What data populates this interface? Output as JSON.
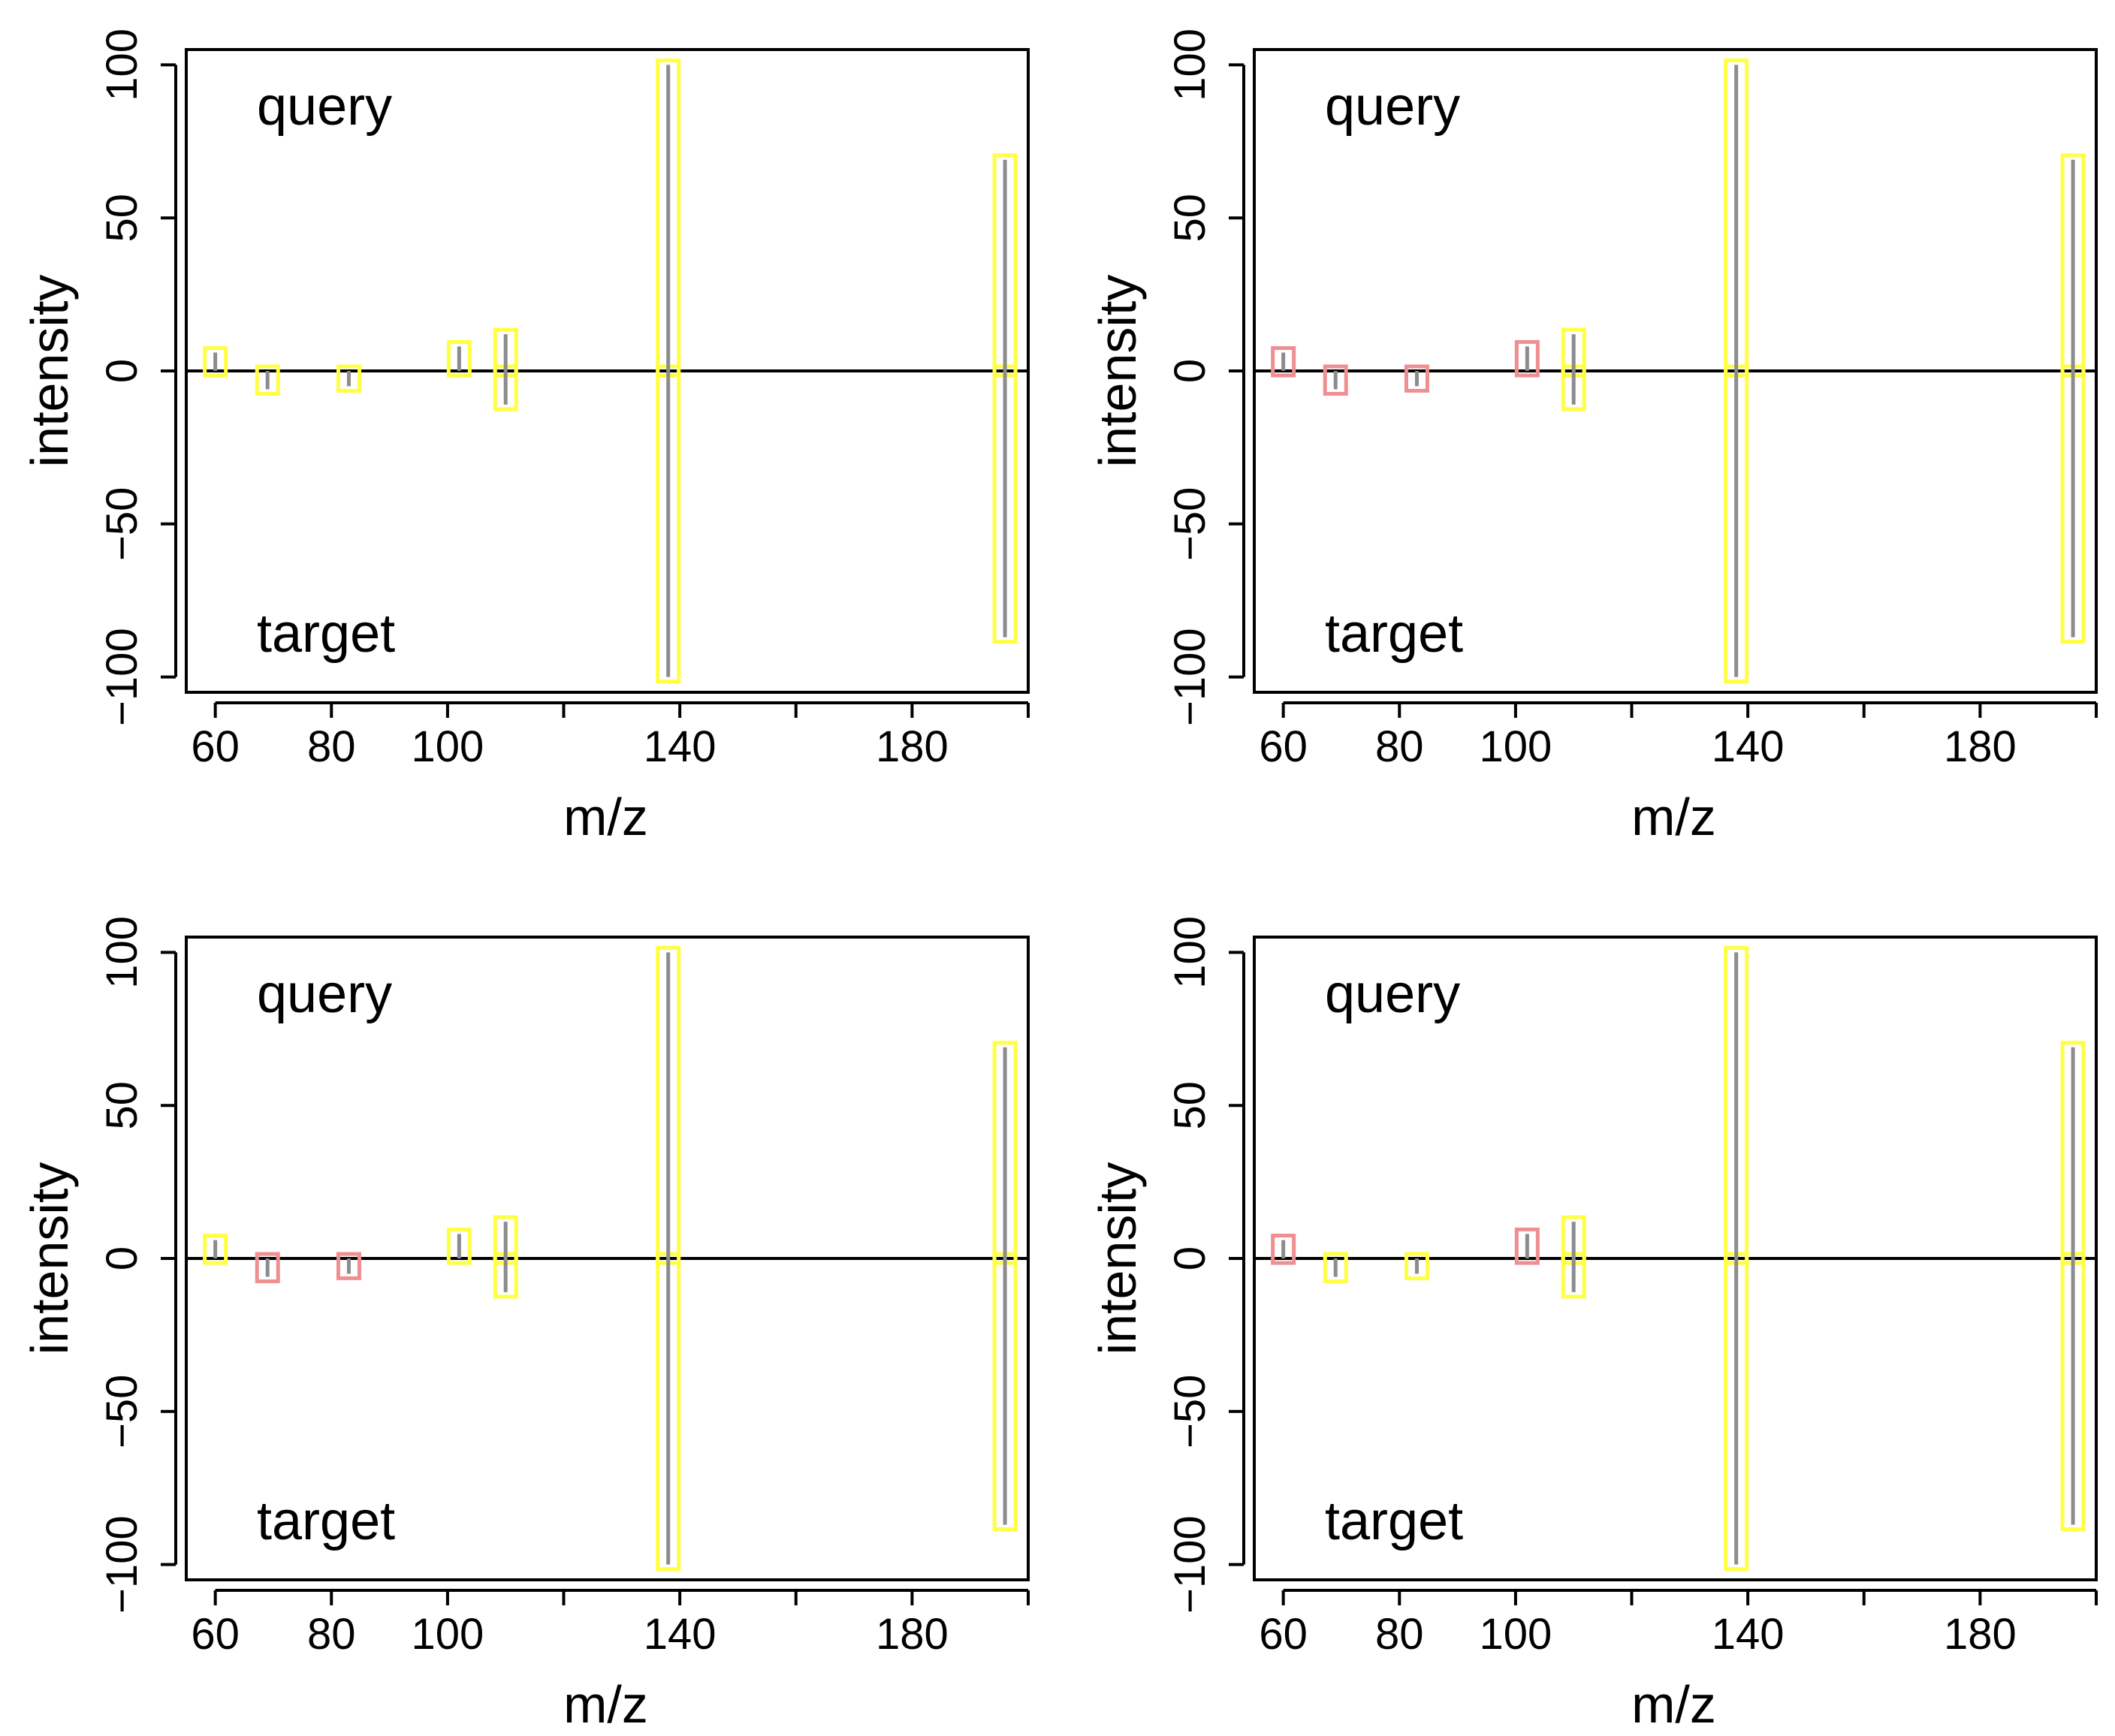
{
  "chart_data": [
    {
      "type": "bar",
      "title": "",
      "xlabel": "m/z",
      "ylabel": "intensity",
      "top_label": "query",
      "bottom_label": "target",
      "xlim": [
        55,
        200
      ],
      "ylim": [
        -105,
        105
      ],
      "xticks": [
        {
          "value": 60,
          "label": "60"
        },
        {
          "value": 80,
          "label": "80"
        },
        {
          "value": 100,
          "label": "100"
        },
        {
          "value": 120,
          "label": ""
        },
        {
          "value": 140,
          "label": "140"
        },
        {
          "value": 160,
          "label": ""
        },
        {
          "value": 180,
          "label": "180"
        },
        {
          "value": 200,
          "label": ""
        }
      ],
      "yticks": [
        {
          "value": -100,
          "label": "−100"
        },
        {
          "value": -50,
          "label": "−50"
        },
        {
          "value": 0,
          "label": "0"
        },
        {
          "value": 50,
          "label": "50"
        },
        {
          "value": 100,
          "label": "100"
        }
      ],
      "peaks": [
        {
          "mz": 60,
          "intensity": 6,
          "match": "yes"
        },
        {
          "mz": 69,
          "intensity": -6,
          "match": "yes"
        },
        {
          "mz": 83,
          "intensity": -5,
          "match": "yes"
        },
        {
          "mz": 102,
          "intensity": 8,
          "match": "yes"
        },
        {
          "mz": 110,
          "intensity": 12,
          "match": "yes"
        },
        {
          "mz": 110,
          "intensity": -11,
          "match": "yes"
        },
        {
          "mz": 138,
          "intensity": 100,
          "match": "yes"
        },
        {
          "mz": 138,
          "intensity": -100,
          "match": "yes"
        },
        {
          "mz": 196,
          "intensity": 69,
          "match": "yes"
        },
        {
          "mz": 196,
          "intensity": -87,
          "match": "yes"
        }
      ]
    },
    {
      "type": "bar",
      "title": "",
      "xlabel": "m/z",
      "ylabel": "intensity",
      "top_label": "query",
      "bottom_label": "target",
      "xlim": [
        55,
        200
      ],
      "ylim": [
        -105,
        105
      ],
      "xticks": [
        {
          "value": 60,
          "label": "60"
        },
        {
          "value": 80,
          "label": "80"
        },
        {
          "value": 100,
          "label": "100"
        },
        {
          "value": 120,
          "label": ""
        },
        {
          "value": 140,
          "label": "140"
        },
        {
          "value": 160,
          "label": ""
        },
        {
          "value": 180,
          "label": "180"
        },
        {
          "value": 200,
          "label": ""
        }
      ],
      "yticks": [
        {
          "value": -100,
          "label": "−100"
        },
        {
          "value": -50,
          "label": "−50"
        },
        {
          "value": 0,
          "label": "0"
        },
        {
          "value": 50,
          "label": "50"
        },
        {
          "value": 100,
          "label": "100"
        }
      ],
      "peaks": [
        {
          "mz": 60,
          "intensity": 6,
          "match": "no"
        },
        {
          "mz": 69,
          "intensity": -6,
          "match": "no"
        },
        {
          "mz": 83,
          "intensity": -5,
          "match": "no"
        },
        {
          "mz": 102,
          "intensity": 8,
          "match": "no"
        },
        {
          "mz": 110,
          "intensity": 12,
          "match": "yes"
        },
        {
          "mz": 110,
          "intensity": -11,
          "match": "yes"
        },
        {
          "mz": 138,
          "intensity": 100,
          "match": "yes"
        },
        {
          "mz": 138,
          "intensity": -100,
          "match": "yes"
        },
        {
          "mz": 196,
          "intensity": 69,
          "match": "yes"
        },
        {
          "mz": 196,
          "intensity": -87,
          "match": "yes"
        }
      ]
    },
    {
      "type": "bar",
      "title": "",
      "xlabel": "m/z",
      "ylabel": "intensity",
      "top_label": "query",
      "bottom_label": "target",
      "xlim": [
        55,
        200
      ],
      "ylim": [
        -105,
        105
      ],
      "xticks": [
        {
          "value": 60,
          "label": "60"
        },
        {
          "value": 80,
          "label": "80"
        },
        {
          "value": 100,
          "label": "100"
        },
        {
          "value": 120,
          "label": ""
        },
        {
          "value": 140,
          "label": "140"
        },
        {
          "value": 160,
          "label": ""
        },
        {
          "value": 180,
          "label": "180"
        },
        {
          "value": 200,
          "label": ""
        }
      ],
      "yticks": [
        {
          "value": -100,
          "label": "−100"
        },
        {
          "value": -50,
          "label": "−50"
        },
        {
          "value": 0,
          "label": "0"
        },
        {
          "value": 50,
          "label": "50"
        },
        {
          "value": 100,
          "label": "100"
        }
      ],
      "peaks": [
        {
          "mz": 60,
          "intensity": 6,
          "match": "yes"
        },
        {
          "mz": 69,
          "intensity": -6,
          "match": "no"
        },
        {
          "mz": 83,
          "intensity": -5,
          "match": "no"
        },
        {
          "mz": 102,
          "intensity": 8,
          "match": "yes"
        },
        {
          "mz": 110,
          "intensity": 12,
          "match": "yes"
        },
        {
          "mz": 110,
          "intensity": -11,
          "match": "yes"
        },
        {
          "mz": 138,
          "intensity": 100,
          "match": "yes"
        },
        {
          "mz": 138,
          "intensity": -100,
          "match": "yes"
        },
        {
          "mz": 196,
          "intensity": 69,
          "match": "yes"
        },
        {
          "mz": 196,
          "intensity": -87,
          "match": "yes"
        }
      ]
    },
    {
      "type": "bar",
      "title": "",
      "xlabel": "m/z",
      "ylabel": "intensity",
      "top_label": "query",
      "bottom_label": "target",
      "xlim": [
        55,
        200
      ],
      "ylim": [
        -105,
        105
      ],
      "xticks": [
        {
          "value": 60,
          "label": "60"
        },
        {
          "value": 80,
          "label": "80"
        },
        {
          "value": 100,
          "label": "100"
        },
        {
          "value": 120,
          "label": ""
        },
        {
          "value": 140,
          "label": "140"
        },
        {
          "value": 160,
          "label": ""
        },
        {
          "value": 180,
          "label": "180"
        },
        {
          "value": 200,
          "label": ""
        }
      ],
      "yticks": [
        {
          "value": -100,
          "label": "−100"
        },
        {
          "value": -50,
          "label": "−50"
        },
        {
          "value": 0,
          "label": "0"
        },
        {
          "value": 50,
          "label": "50"
        },
        {
          "value": 100,
          "label": "100"
        }
      ],
      "peaks": [
        {
          "mz": 60,
          "intensity": 6,
          "match": "no"
        },
        {
          "mz": 69,
          "intensity": -6,
          "match": "yes"
        },
        {
          "mz": 83,
          "intensity": -5,
          "match": "yes"
        },
        {
          "mz": 102,
          "intensity": 8,
          "match": "no"
        },
        {
          "mz": 110,
          "intensity": 12,
          "match": "yes"
        },
        {
          "mz": 110,
          "intensity": -11,
          "match": "yes"
        },
        {
          "mz": 138,
          "intensity": 100,
          "match": "yes"
        },
        {
          "mz": 138,
          "intensity": -100,
          "match": "yes"
        },
        {
          "mz": 196,
          "intensity": 69,
          "match": "yes"
        },
        {
          "mz": 196,
          "intensity": -87,
          "match": "yes"
        }
      ]
    }
  ],
  "colors": {
    "matched": "#ffff44",
    "unmatched": "#ef8f92",
    "peak": "#8c8c8c",
    "axis": "#000000"
  }
}
